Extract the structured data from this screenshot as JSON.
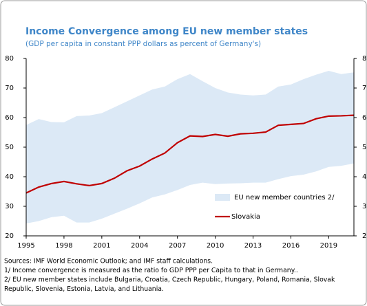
{
  "chart_data": {
    "type": "band_line",
    "title": "Income Convergence among EU new member states",
    "subtitle": "(GDP per capita in constant PPP dollars as percent of Germany's)",
    "x": [
      1995,
      1996,
      1997,
      1998,
      1999,
      2000,
      2001,
      2002,
      2003,
      2004,
      2005,
      2006,
      2007,
      2008,
      2009,
      2010,
      2011,
      2012,
      2013,
      2014,
      2015,
      2016,
      2017,
      2018,
      2019,
      2020,
      2021
    ],
    "xlim": [
      1995,
      2021
    ],
    "xticks": [
      1995,
      1998,
      2001,
      2004,
      2007,
      2010,
      2013,
      2016,
      2019
    ],
    "ylim": [
      20,
      80
    ],
    "yticks": [
      20,
      30,
      40,
      50,
      60,
      70,
      80
    ],
    "y2lim": [
      20,
      80
    ],
    "y2ticks": [
      20,
      30,
      40,
      50,
      60,
      70,
      80
    ],
    "legend": "lower right",
    "band": {
      "name": "EU new member countries 2/",
      "color": "#dce9f6",
      "lower": [
        24.2,
        25,
        26.3,
        26.8,
        24.5,
        24.5,
        25.8,
        27.5,
        29.2,
        31,
        33,
        34,
        35.5,
        37.2,
        38,
        37.5,
        37.7,
        37.8,
        38,
        38,
        39.2,
        40.2,
        40.7,
        41.8,
        43.3,
        43.7,
        44.5
      ],
      "upper": [
        57.5,
        59.5,
        58.5,
        58.4,
        60.5,
        60.7,
        61.5,
        63.5,
        65.5,
        67.5,
        69.5,
        70.5,
        73,
        74.7,
        72.3,
        70,
        68.5,
        67.8,
        67.5,
        67.8,
        70.5,
        71.2,
        73,
        74.5,
        75.8,
        74.7,
        75.3
      ]
    },
    "series": [
      {
        "name": "Slovakia",
        "color": "#c00000",
        "values": [
          34.5,
          36.5,
          37.7,
          38.4,
          37.6,
          37,
          37.7,
          39.5,
          42,
          43.6,
          46,
          48,
          51.5,
          53.8,
          53.6,
          54.3,
          53.7,
          54.5,
          54.7,
          55.1,
          57.4,
          57.7,
          58,
          59.6,
          60.5,
          60.6,
          60.8
        ]
      }
    ],
    "notes": [
      "Sources: IMF World Economic Outlook; and IMF staff calculations.",
      "1/ Income convergence is measured as the ratio fo GDP PPP per Capita to that in Germany..",
      "2/ EU new member states include Bulgaria, Croatia, Czech Republic, Hungary, Poland, Romania, Slovak",
      "Republic, Slovenia, Estonia, Latvia, and Lithuania."
    ]
  }
}
